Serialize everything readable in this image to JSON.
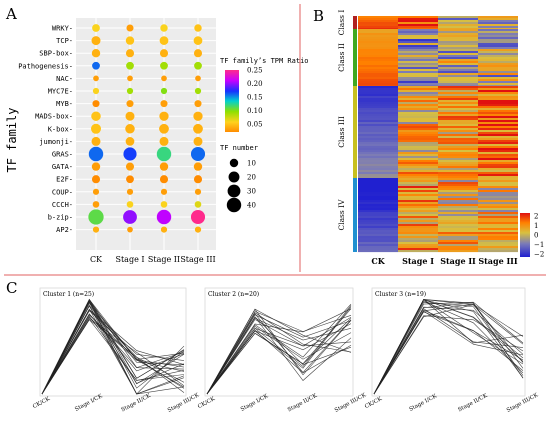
{
  "panels": {
    "a": {
      "letter": "A"
    },
    "b": {
      "letter": "B"
    },
    "c": {
      "letter": "C"
    }
  },
  "colors": {
    "separator": "#e06060",
    "panel_bg": "#ececec",
    "ratio_scale": [
      "#ff8c00",
      "#ffd21e",
      "#8ee000",
      "#00d0d0",
      "#1730ff",
      "#c800ff",
      "#ff2a8c"
    ],
    "heatmap_scale": [
      "#2020d0",
      "#7a7ab8",
      "#d8c040",
      "#ff8000",
      "#e01010"
    ],
    "class_bars": [
      "#b02020",
      "#40a820",
      "#c8c020",
      "#2090d0"
    ]
  },
  "chart_data": [
    {
      "type": "scatter",
      "subtype": "dot-matrix",
      "ylabel": "TF family",
      "categories_x": [
        "CK",
        "Stage I",
        "Stage II",
        "Stage III"
      ],
      "categories_y": [
        "WRKY",
        "TCP",
        "SBP-box",
        "Pathogenesis",
        "NAC",
        "MYC7E",
        "MYB",
        "MADS-box",
        "K-box",
        "jumonji",
        "GRAS",
        "GATA",
        "E2F",
        "COUP",
        "CCCH",
        "b-zip",
        "AP2"
      ],
      "tf_number": [
        [
          8,
          6,
          7,
          7
        ],
        [
          12,
          10,
          11,
          11
        ],
        [
          10,
          9,
          9,
          9
        ],
        [
          8,
          8,
          8,
          8
        ],
        [
          3,
          3,
          3,
          3
        ],
        [
          4,
          4,
          4,
          4
        ],
        [
          6,
          6,
          6,
          6
        ],
        [
          14,
          12,
          13,
          13
        ],
        [
          16,
          14,
          15,
          15
        ],
        [
          12,
          11,
          12,
          12
        ],
        [
          40,
          32,
          40,
          38
        ],
        [
          10,
          9,
          10,
          10
        ],
        [
          9,
          8,
          9,
          9
        ],
        [
          4,
          4,
          4,
          4
        ],
        [
          5,
          5,
          5,
          5
        ],
        [
          46,
          36,
          40,
          38
        ],
        [
          4,
          3,
          4,
          4
        ]
      ],
      "tpm_ratio": [
        [
          0.06,
          0.03,
          0.06,
          0.05
        ],
        [
          0.04,
          0.05,
          0.05,
          0.05
        ],
        [
          0.04,
          0.04,
          0.04,
          0.04
        ],
        [
          0.16,
          0.09,
          0.09,
          0.09
        ],
        [
          0.03,
          0.03,
          0.03,
          0.03
        ],
        [
          0.06,
          0.09,
          0.1,
          0.09
        ],
        [
          0.02,
          0.03,
          0.03,
          0.03
        ],
        [
          0.05,
          0.04,
          0.04,
          0.04
        ],
        [
          0.05,
          0.04,
          0.04,
          0.04
        ],
        [
          0.04,
          0.04,
          0.04,
          0.04
        ],
        [
          0.16,
          0.17,
          0.12,
          0.16
        ],
        [
          0.03,
          0.03,
          0.03,
          0.03
        ],
        [
          0.02,
          0.02,
          0.02,
          0.02
        ],
        [
          0.03,
          0.03,
          0.03,
          0.03
        ],
        [
          0.03,
          0.06,
          0.06,
          0.07
        ],
        [
          0.11,
          0.2,
          0.21,
          0.25
        ],
        [
          0.04,
          0.03,
          0.04,
          0.04
        ]
      ],
      "color_legend": {
        "title": "TF family’s TPM Ratio",
        "ticks": [
          "0.25",
          "0.20",
          "0.15",
          "0.10",
          "0.05"
        ],
        "range": [
          0.02,
          0.25
        ]
      },
      "size_legend": {
        "title": "TF number",
        "ticks": [
          "10",
          "20",
          "30",
          "40"
        ]
      }
    },
    {
      "type": "heatmap",
      "columns": [
        "CK",
        "Stage I",
        "Stage II",
        "Stage III"
      ],
      "classes": [
        "Class I",
        "Class II",
        "Class III",
        "Class IV"
      ],
      "class_means": [
        [
          1.4,
          1.5,
          -0.6,
          -0.6
        ],
        [
          1.0,
          -0.8,
          -0.3,
          -0.3
        ],
        [
          -1.3,
          0.3,
          0.6,
          1.1
        ],
        [
          -1.7,
          0.7,
          0.3,
          0.2
        ]
      ],
      "colorbar": {
        "ticks": [
          "2",
          "1",
          "0",
          "−1",
          "−2"
        ],
        "range": [
          -2,
          2
        ]
      }
    },
    {
      "type": "line",
      "categories": [
        "CK/CK",
        "Stage I/CK",
        "Stage II/CK",
        "Stage III/CK"
      ],
      "panels": [
        {
          "title": "Cluster 1 (n=25)",
          "n": 25,
          "mean": [
            0,
            1.0,
            0.22,
            0.28
          ]
        },
        {
          "title": "Cluster 2 (n=20)",
          "n": 20,
          "mean": [
            0,
            0.78,
            0.42,
            0.73
          ]
        },
        {
          "title": "Cluster 3 (n=19)",
          "n": 19,
          "mean": [
            0,
            0.95,
            0.78,
            0.42
          ]
        }
      ]
    }
  ]
}
